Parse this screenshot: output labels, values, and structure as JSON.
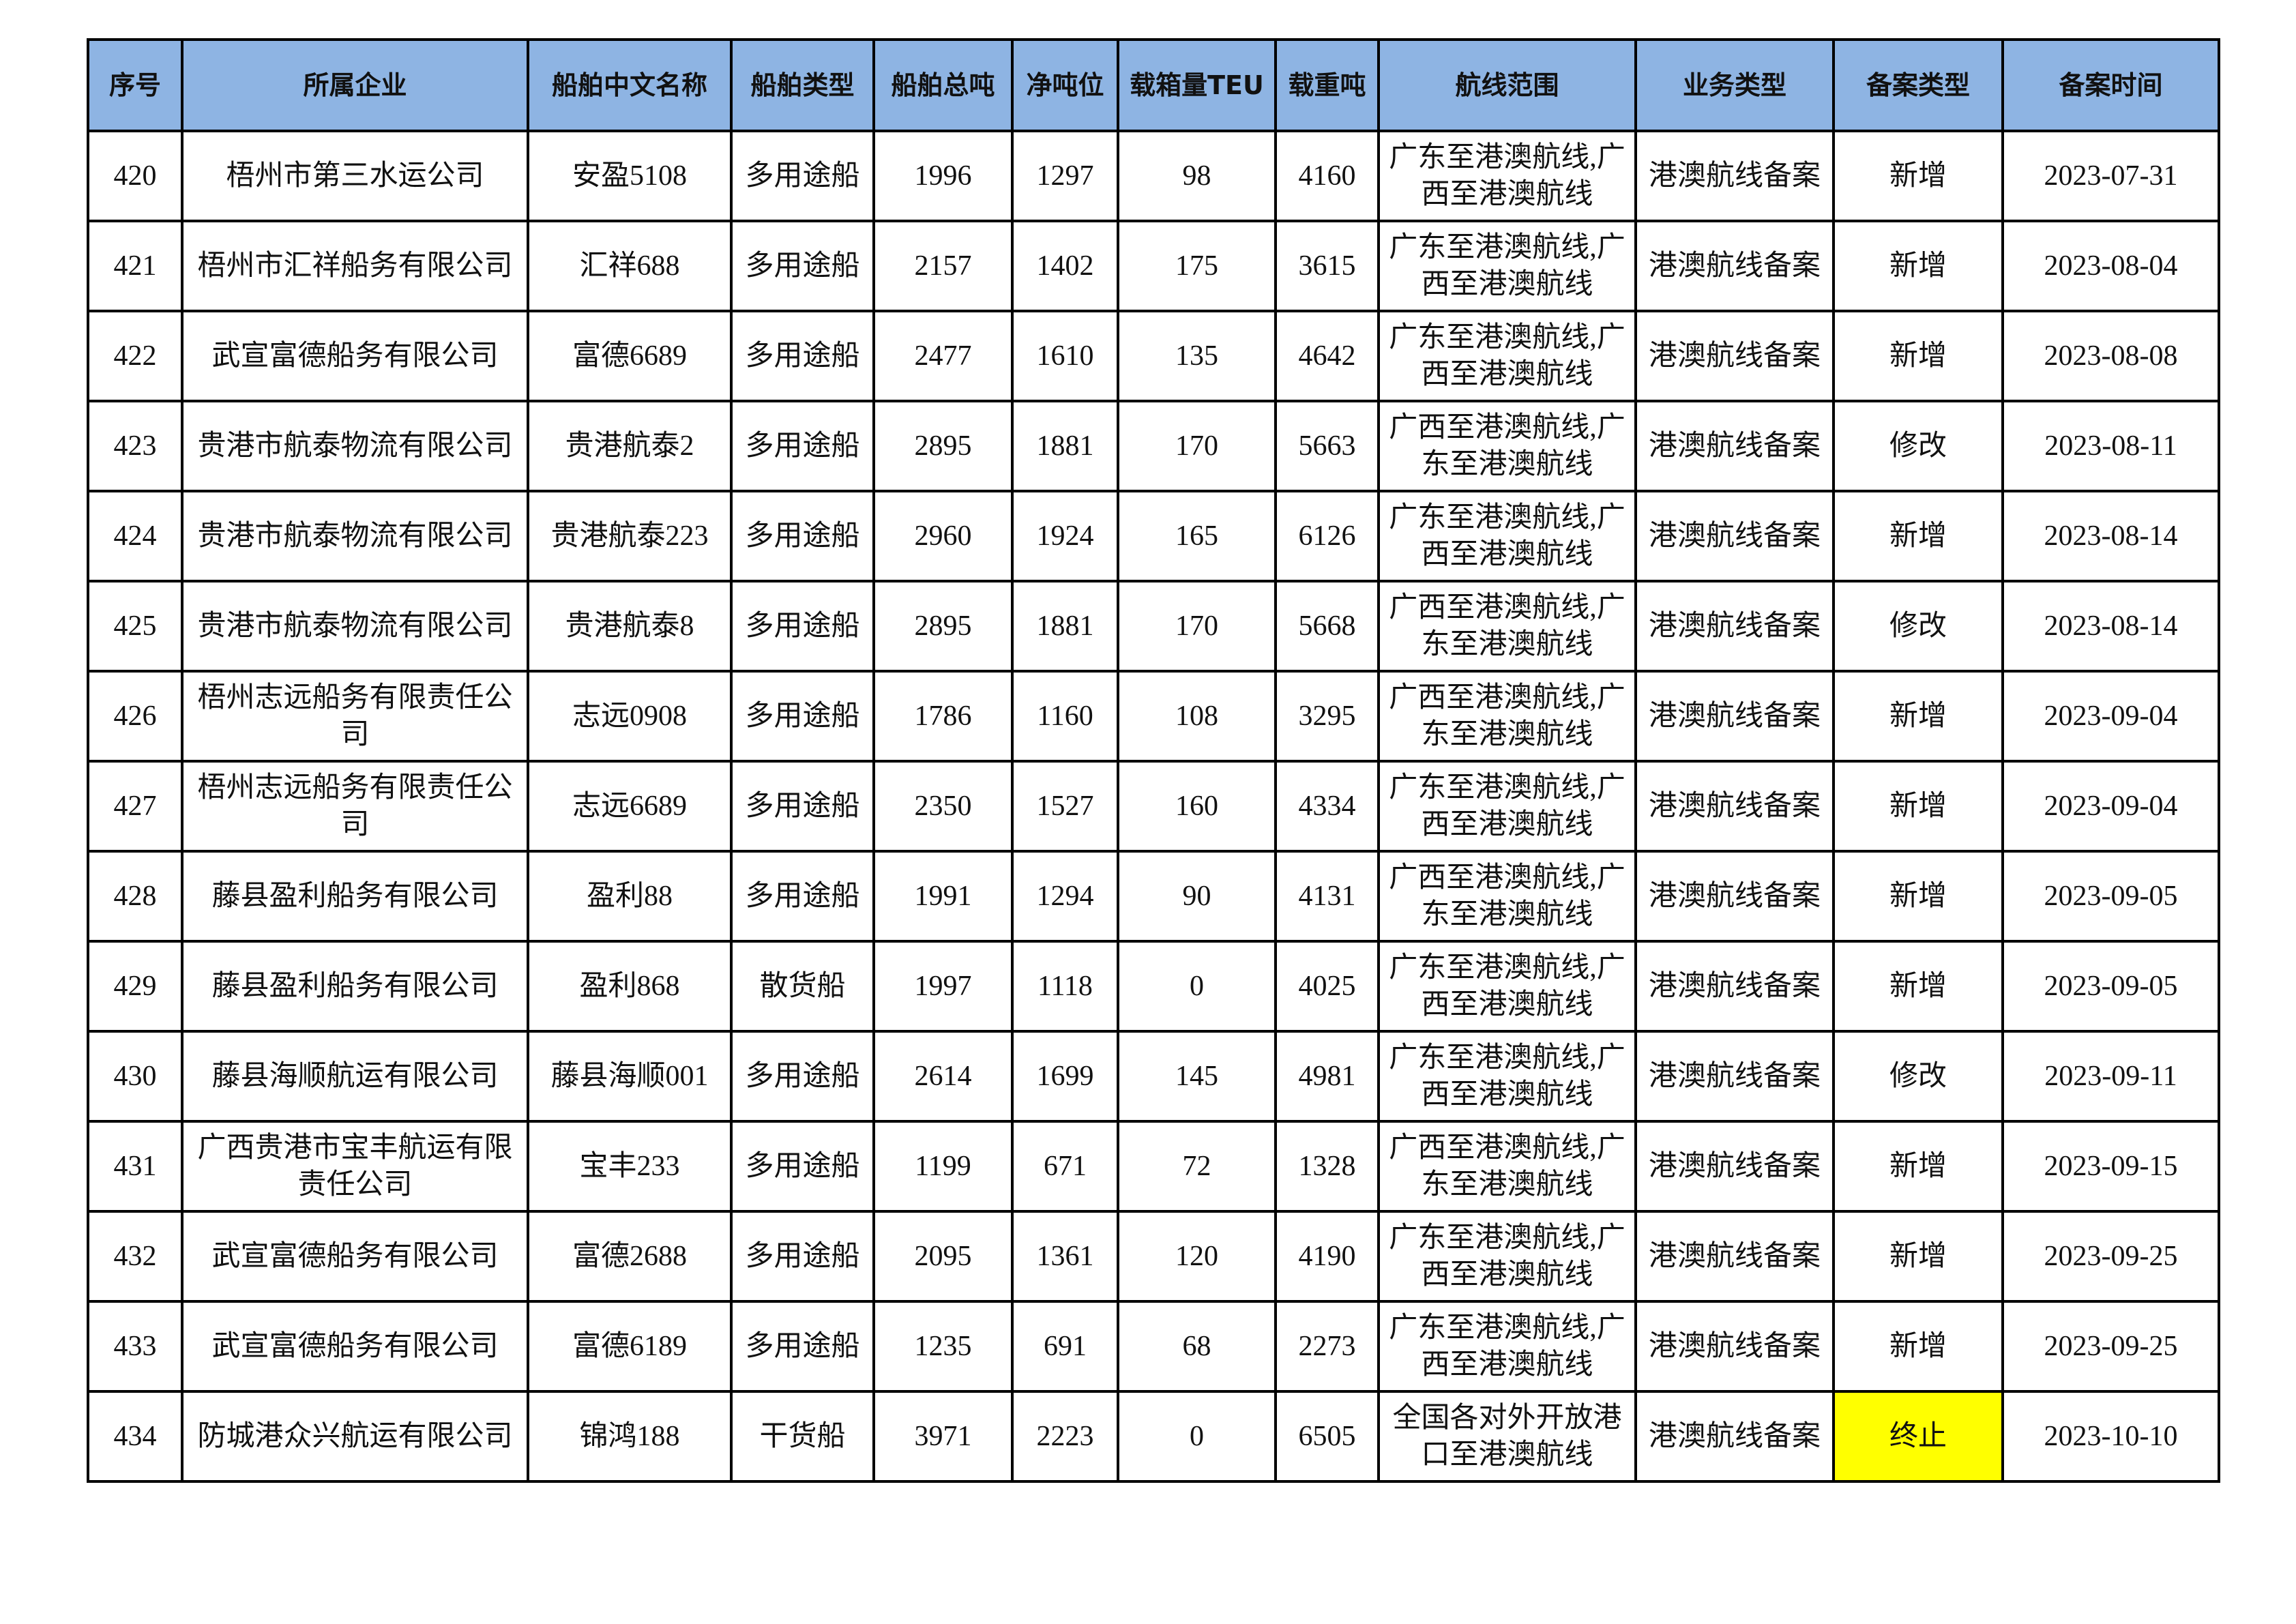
{
  "table": {
    "columns": [
      "序号",
      "所属企业",
      "船舶中文名称",
      "船舶类型",
      "船舶总吨",
      "净吨位",
      "载箱量TEU",
      "载重吨",
      "航线范围",
      "业务类型",
      "备案类型",
      "备案时间"
    ],
    "highlight_color": "#ffff00",
    "header_color": "#8eb4e3",
    "rows": [
      {
        "cells": [
          "420",
          "梧州市第三水运公司",
          "安盈5108",
          "多用途船",
          "1996",
          "1297",
          "98",
          "4160",
          "广东至港澳航线,广西至港澳航线",
          "港澳航线备案",
          "新增",
          "2023-07-31"
        ]
      },
      {
        "cells": [
          "421",
          "梧州市汇祥船务有限公司",
          "汇祥688",
          "多用途船",
          "2157",
          "1402",
          "175",
          "3615",
          "广东至港澳航线,广西至港澳航线",
          "港澳航线备案",
          "新增",
          "2023-08-04"
        ]
      },
      {
        "cells": [
          "422",
          "武宣富德船务有限公司",
          "富德6689",
          "多用途船",
          "2477",
          "1610",
          "135",
          "4642",
          "广东至港澳航线,广西至港澳航线",
          "港澳航线备案",
          "新增",
          "2023-08-08"
        ]
      },
      {
        "cells": [
          "423",
          "贵港市航泰物流有限公司",
          "贵港航泰2",
          "多用途船",
          "2895",
          "1881",
          "170",
          "5663",
          "广西至港澳航线,广东至港澳航线",
          "港澳航线备案",
          "修改",
          "2023-08-11"
        ]
      },
      {
        "cells": [
          "424",
          "贵港市航泰物流有限公司",
          "贵港航泰223",
          "多用途船",
          "2960",
          "1924",
          "165",
          "6126",
          "广东至港澳航线,广西至港澳航线",
          "港澳航线备案",
          "新增",
          "2023-08-14"
        ]
      },
      {
        "cells": [
          "425",
          "贵港市航泰物流有限公司",
          "贵港航泰8",
          "多用途船",
          "2895",
          "1881",
          "170",
          "5668",
          "广西至港澳航线,广东至港澳航线",
          "港澳航线备案",
          "修改",
          "2023-08-14"
        ]
      },
      {
        "cells": [
          "426",
          "梧州志远船务有限责任公司",
          "志远0908",
          "多用途船",
          "1786",
          "1160",
          "108",
          "3295",
          "广西至港澳航线,广东至港澳航线",
          "港澳航线备案",
          "新增",
          "2023-09-04"
        ]
      },
      {
        "cells": [
          "427",
          "梧州志远船务有限责任公司",
          "志远6689",
          "多用途船",
          "2350",
          "1527",
          "160",
          "4334",
          "广东至港澳航线,广西至港澳航线",
          "港澳航线备案",
          "新增",
          "2023-09-04"
        ]
      },
      {
        "cells": [
          "428",
          "藤县盈利船务有限公司",
          "盈利88",
          "多用途船",
          "1991",
          "1294",
          "90",
          "4131",
          "广西至港澳航线,广东至港澳航线",
          "港澳航线备案",
          "新增",
          "2023-09-05"
        ]
      },
      {
        "cells": [
          "429",
          "藤县盈利船务有限公司",
          "盈利868",
          "散货船",
          "1997",
          "1118",
          "0",
          "4025",
          "广东至港澳航线,广西至港澳航线",
          "港澳航线备案",
          "新增",
          "2023-09-05"
        ]
      },
      {
        "cells": [
          "430",
          "藤县海顺航运有限公司",
          "藤县海顺001",
          "多用途船",
          "2614",
          "1699",
          "145",
          "4981",
          "广东至港澳航线,广西至港澳航线",
          "港澳航线备案",
          "修改",
          "2023-09-11"
        ]
      },
      {
        "cells": [
          "431",
          "广西贵港市宝丰航运有限责任公司",
          "宝丰233",
          "多用途船",
          "1199",
          "671",
          "72",
          "1328",
          "广西至港澳航线,广东至港澳航线",
          "港澳航线备案",
          "新增",
          "2023-09-15"
        ]
      },
      {
        "cells": [
          "432",
          "武宣富德船务有限公司",
          "富德2688",
          "多用途船",
          "2095",
          "1361",
          "120",
          "4190",
          "广东至港澳航线,广西至港澳航线",
          "港澳航线备案",
          "新增",
          "2023-09-25"
        ]
      },
      {
        "cells": [
          "433",
          "武宣富德船务有限公司",
          "富德6189",
          "多用途船",
          "1235",
          "691",
          "68",
          "2273",
          "广东至港澳航线,广西至港澳航线",
          "港澳航线备案",
          "新增",
          "2023-09-25"
        ]
      },
      {
        "cells": [
          "434",
          "防城港众兴航运有限公司",
          "锦鸿188",
          "干货船",
          "3971",
          "2223",
          "0",
          "6505",
          "全国各对外开放港口至港澳航线",
          "港澳航线备案",
          "终止",
          "2023-10-10"
        ],
        "highlight_col": 10
      }
    ]
  }
}
